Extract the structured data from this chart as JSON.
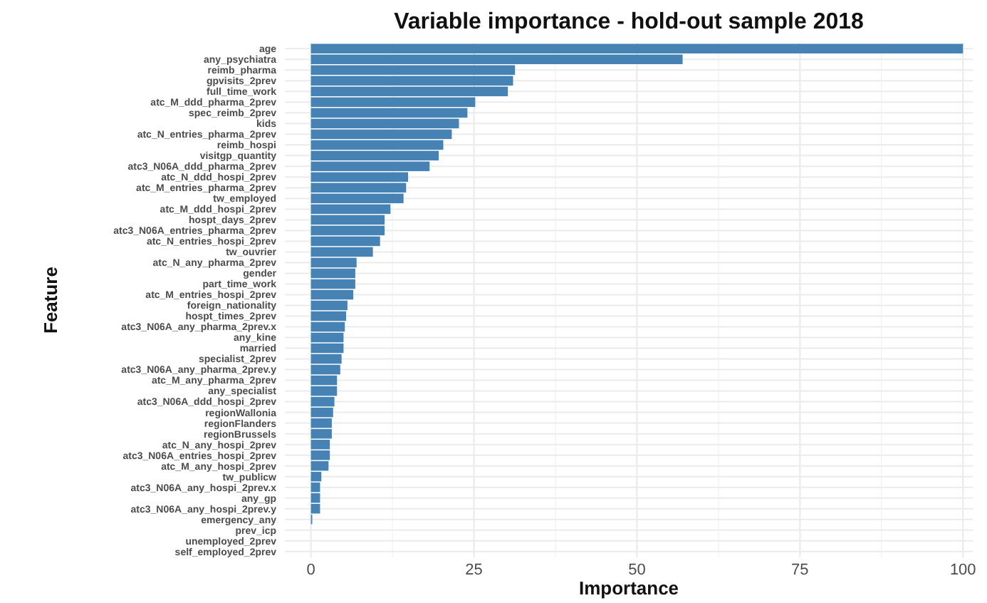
{
  "chart_data": {
    "type": "bar",
    "orientation": "horizontal",
    "title": "Variable importance - hold-out sample 2018",
    "xlabel": "Importance",
    "ylabel": "Feature",
    "categories": [
      "age",
      "any_psychiatra",
      "reimb_pharma",
      "gpvisits_2prev",
      "full_time_work",
      "atc_M_ddd_pharma_2prev",
      "spec_reimb_2prev",
      "kids",
      "atc_N_entries_pharma_2prev",
      "reimb_hospi",
      "visitgp_quantity",
      "atc3_N06A_ddd_pharma_2prev",
      "atc_N_ddd_hospi_2prev",
      "atc_M_entries_pharma_2prev",
      "tw_employed",
      "atc_M_ddd_hospi_2prev",
      "hospt_days_2prev",
      "atc3_N06A_entries_pharma_2prev",
      "atc_N_entries_hospi_2prev",
      "tw_ouvrier",
      "atc_N_any_pharma_2prev",
      "gender",
      "part_time_work",
      "atc_M_entries_hospi_2prev",
      "foreign_nationality",
      "hospt_times_2prev",
      "atc3_N06A_any_pharma_2prev.x",
      "any_kine",
      "married",
      "specialist_2prev",
      "atc3_N06A_any_pharma_2prev.y",
      "atc_M_any_pharma_2prev",
      "any_specialist",
      "atc3_N06A_ddd_hospi_2prev",
      "regionWallonia",
      "regionFlanders",
      "regionBrussels",
      "atc_N_any_hospi_2prev",
      "atc3_N06A_entries_hospi_2prev",
      "atc_M_any_hospi_2prev",
      "tw_publicw",
      "atc3_N06A_any_hospi_2prev.x",
      "any_gp",
      "atc3_N06A_any_hospi_2prev.y",
      "emergency_any",
      "prev_icp",
      "unemployed_2prev",
      "self_employed_2prev"
    ],
    "values": [
      100,
      57,
      31.3,
      31,
      30.2,
      25.2,
      24,
      22.7,
      21.6,
      20.3,
      19.6,
      18.2,
      14.9,
      14.6,
      14.2,
      12.2,
      11.3,
      11.3,
      10.6,
      9.5,
      7,
      6.8,
      6.8,
      6.5,
      5.6,
      5.4,
      5.2,
      5,
      5,
      4.7,
      4.5,
      4,
      4,
      3.6,
      3.4,
      3.2,
      3.2,
      2.9,
      2.9,
      2.7,
      1.6,
      1.4,
      1.4,
      1.4,
      0.2,
      0,
      0,
      0
    ],
    "color": "#4682b4",
    "xlim": [
      -4,
      101.5
    ],
    "xticks": [
      0,
      25,
      50,
      75,
      100
    ],
    "grid": true
  }
}
